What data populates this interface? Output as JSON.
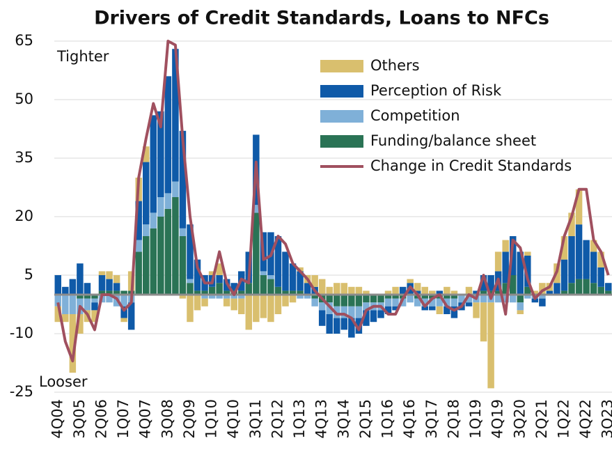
{
  "chart_data": {
    "type": "stacked-bar-line",
    "title": "Drivers of Credit Standards, Loans to NFCs",
    "annotations": [
      "Tighter",
      "Looser"
    ],
    "categories": [
      "4Q04",
      null,
      null,
      "3Q05",
      null,
      null,
      "2Q06",
      null,
      null,
      "1Q07",
      null,
      null,
      "4Q07",
      null,
      null,
      "3Q08",
      null,
      null,
      "2Q09",
      null,
      null,
      "1Q10",
      null,
      null,
      "4Q10",
      null,
      null,
      "3Q11",
      null,
      null,
      "2Q12",
      null,
      null,
      "1Q13",
      null,
      null,
      "4Q13",
      null,
      null,
      "3Q14",
      null,
      null,
      "2Q15",
      null,
      null,
      "1Q16",
      null,
      null,
      "4Q16",
      null,
      null,
      "3Q17",
      null,
      null,
      "2Q18",
      null,
      null,
      "1Q19",
      null,
      null,
      "4Q19",
      null,
      null,
      "3Q20",
      null,
      null,
      "2Q21",
      null,
      null,
      "1Q22",
      null,
      null,
      "4Q22",
      null,
      null,
      "3Q23"
    ],
    "series": [
      {
        "name": "Others",
        "color": "#d9bf6e",
        "values": [
          -4,
          -2,
          -15,
          -5,
          -3,
          -3,
          1,
          2,
          2,
          -1,
          5,
          6,
          4,
          0,
          0,
          0,
          0,
          -1,
          -7,
          -4,
          -2,
          1,
          3,
          -2,
          -3,
          -4,
          -9,
          -7,
          -6,
          -7,
          -5,
          -3,
          -2,
          1,
          2,
          3,
          4,
          2,
          3,
          3,
          2,
          2,
          1,
          0,
          0,
          1,
          2,
          0,
          1,
          2,
          2,
          1,
          -2,
          2,
          1,
          0,
          2,
          -4,
          -10,
          -22,
          5,
          3,
          0,
          -1,
          1,
          1,
          3,
          2,
          5,
          6,
          6,
          9,
          0,
          3,
          4,
          0
        ]
      },
      {
        "name": "Perception of Risk",
        "color": "#0f5aa8",
        "values": [
          5,
          2,
          4,
          8,
          3,
          -2,
          4,
          3,
          2,
          -3,
          -7,
          10,
          16,
          25,
          22,
          30,
          34,
          25,
          14,
          8,
          4,
          3,
          2,
          3,
          2,
          5,
          8,
          18,
          10,
          11,
          13,
          10,
          7,
          5,
          3,
          2,
          -4,
          -5,
          -4,
          -3,
          -5,
          -4,
          -4,
          -3,
          -2,
          -2,
          -1,
          2,
          3,
          1,
          -1,
          -1,
          1,
          -2,
          -3,
          -2,
          -1,
          1,
          4,
          4,
          5,
          8,
          10,
          11,
          8,
          -1,
          -2,
          1,
          3,
          8,
          12,
          14,
          10,
          8,
          5,
          2
        ]
      },
      {
        "name": "Competition",
        "color": "#7fb0d8",
        "values": [
          -3,
          -5,
          -5,
          -4,
          -3,
          -1,
          -2,
          -2,
          -3,
          -3,
          -2,
          3,
          3,
          4,
          5,
          4,
          4,
          2,
          1,
          0,
          -1,
          -1,
          -1,
          -1,
          -1,
          -1,
          0,
          2,
          1,
          1,
          0,
          0,
          0,
          -1,
          -1,
          -2,
          -2,
          -3,
          -3,
          -3,
          -3,
          -3,
          -2,
          -2,
          -2,
          -2,
          -2,
          -2,
          -2,
          -2,
          -2,
          -2,
          -2,
          -2,
          -2,
          -2,
          -2,
          -2,
          -2,
          -2,
          -2,
          -2,
          -2,
          -2,
          -1,
          -1,
          -1,
          0,
          0,
          0,
          0,
          0,
          0,
          0,
          0,
          0
        ]
      },
      {
        "name": "Funding/balance sheet",
        "color": "#2a7355",
        "values": [
          0,
          0,
          0,
          -1,
          -1,
          -1,
          1,
          1,
          1,
          1,
          1,
          11,
          15,
          17,
          20,
          22,
          25,
          15,
          3,
          1,
          1,
          2,
          3,
          1,
          1,
          1,
          3,
          21,
          5,
          4,
          2,
          1,
          1,
          1,
          0,
          -1,
          -2,
          -2,
          -3,
          -3,
          -3,
          -3,
          -2,
          -2,
          -2,
          -1,
          -1,
          -1,
          0,
          -1,
          -1,
          -1,
          -1,
          -1,
          -1,
          0,
          0,
          0,
          1,
          1,
          1,
          3,
          5,
          -2,
          2,
          0,
          0,
          0,
          0,
          1,
          3,
          4,
          4,
          3,
          2,
          1
        ]
      }
    ],
    "line": {
      "name": "Change in Credit Standards",
      "color": "#a0505f",
      "values": [
        -2,
        -12,
        -17,
        -3,
        -5,
        -9,
        0,
        0,
        -1,
        -4,
        -2,
        30,
        40,
        49,
        43,
        65,
        64,
        40,
        20,
        7,
        3,
        3,
        11,
        3,
        0,
        4,
        3,
        34,
        9,
        10,
        15,
        13,
        8,
        6,
        4,
        1,
        -1,
        -3,
        -5,
        -5,
        -6,
        -9,
        -4,
        -3,
        -3,
        -5,
        -5,
        -1,
        2,
        0,
        -3,
        -1,
        0,
        -3,
        -4,
        -3,
        0,
        -1,
        5,
        -1,
        4,
        -5,
        14,
        12,
        4,
        -1,
        1,
        2,
        6,
        15,
        20,
        27,
        27,
        14,
        11,
        5
      ]
    },
    "ylim": [
      -25,
      65
    ],
    "yticks": [
      -25,
      -10,
      5,
      20,
      35,
      50,
      65
    ],
    "grid": true
  }
}
